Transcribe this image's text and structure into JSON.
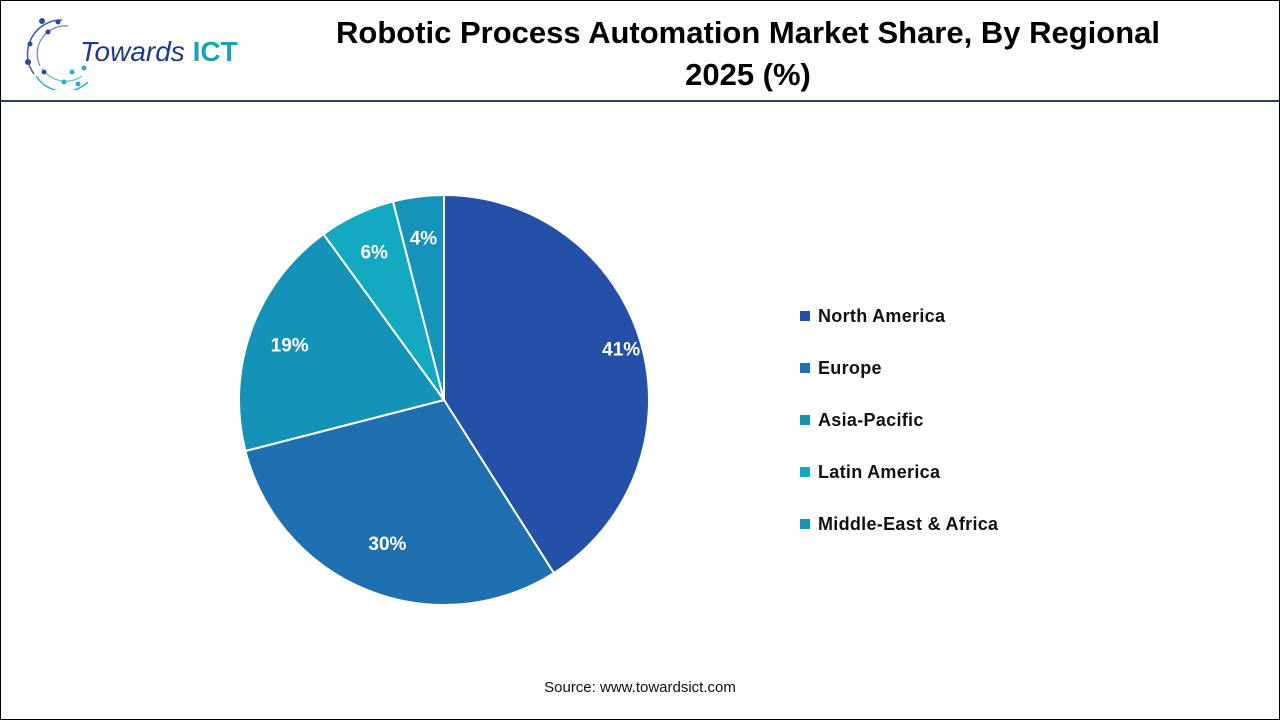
{
  "logo": {
    "text_part1": "Towards",
    "text_part2": "ICT"
  },
  "chart_data": {
    "type": "pie",
    "title": "Robotic Process Automation Market Share, By Regional 2025 (%)",
    "categories": [
      "North America",
      "Europe",
      "Asia-Pacific",
      "Latin America",
      "Middle-East & Africa"
    ],
    "values": [
      41,
      30,
      19,
      6,
      4
    ],
    "labels": [
      "41%",
      "30%",
      "19%",
      "6%",
      "4%"
    ],
    "colors": [
      "#2550a8",
      "#1e70b0",
      "#1492b8",
      "#13a9c1",
      "#1593b9"
    ],
    "legend_position": "right"
  },
  "source": "Source: www.towardsict.com"
}
